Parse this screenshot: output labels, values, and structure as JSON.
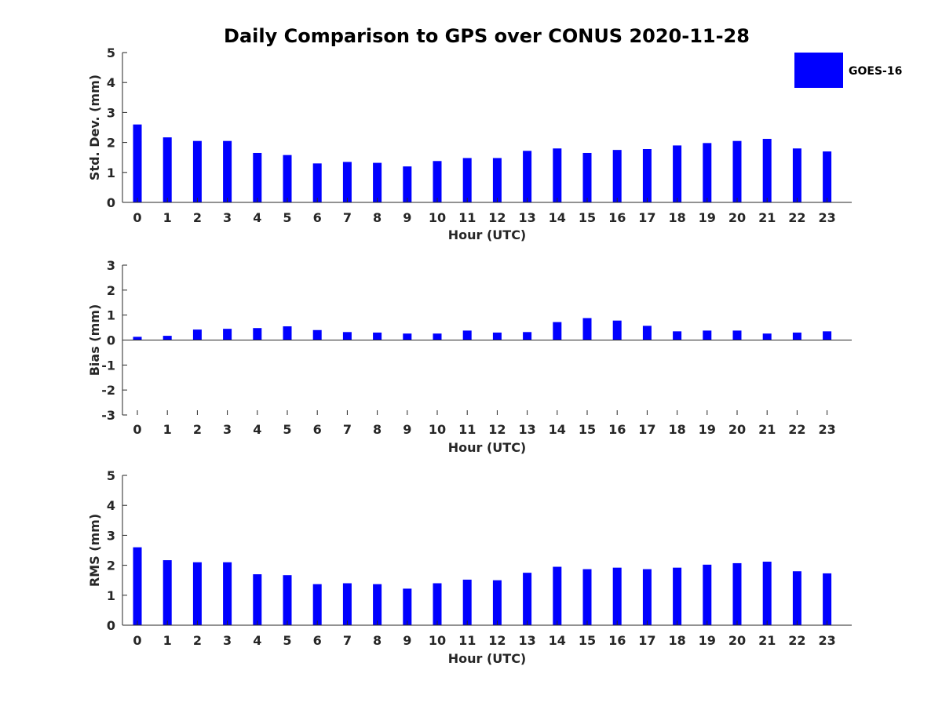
{
  "figure_title": "Daily Comparison to GPS over CONUS 2020-11-28",
  "legend": {
    "label": "GOES-16",
    "color": "#0000ff"
  },
  "chart_data": [
    {
      "type": "bar",
      "ylabel": "Std. Dev. (mm)",
      "xlabel": "Hour (UTC)",
      "ylim": [
        0,
        5
      ],
      "yticks": [
        "0",
        "1",
        "2",
        "3",
        "4",
        "5"
      ],
      "categories": [
        "0",
        "1",
        "2",
        "3",
        "4",
        "5",
        "6",
        "7",
        "8",
        "9",
        "10",
        "11",
        "12",
        "13",
        "14",
        "15",
        "16",
        "17",
        "18",
        "19",
        "20",
        "21",
        "22",
        "23"
      ],
      "series": [
        {
          "name": "GOES-16",
          "color": "#0000ff",
          "values": [
            2.6,
            2.17,
            2.05,
            2.05,
            1.65,
            1.58,
            1.3,
            1.35,
            1.32,
            1.2,
            1.38,
            1.48,
            1.48,
            1.72,
            1.8,
            1.65,
            1.75,
            1.78,
            1.9,
            1.98,
            2.05,
            2.12,
            1.8,
            1.7
          ]
        }
      ]
    },
    {
      "type": "bar",
      "ylabel": "Bias (mm)",
      "xlabel": "Hour (UTC)",
      "ylim": [
        -3,
        3
      ],
      "yticks": [
        "-3",
        "-2",
        "-1",
        "0",
        "1",
        "2",
        "3"
      ],
      "categories": [
        "0",
        "1",
        "2",
        "3",
        "4",
        "5",
        "6",
        "7",
        "8",
        "9",
        "10",
        "11",
        "12",
        "13",
        "14",
        "15",
        "16",
        "17",
        "18",
        "19",
        "20",
        "21",
        "22",
        "23"
      ],
      "series": [
        {
          "name": "GOES-16",
          "color": "#0000ff",
          "values": [
            0.13,
            0.17,
            0.42,
            0.45,
            0.48,
            0.55,
            0.4,
            0.32,
            0.3,
            0.26,
            0.26,
            0.38,
            0.3,
            0.32,
            0.72,
            0.88,
            0.78,
            0.57,
            0.35,
            0.38,
            0.38,
            0.26,
            0.3,
            0.35
          ]
        }
      ]
    },
    {
      "type": "bar",
      "ylabel": "RMS (mm)",
      "xlabel": "Hour (UTC)",
      "ylim": [
        0,
        5
      ],
      "yticks": [
        "0",
        "1",
        "2",
        "3",
        "4",
        "5"
      ],
      "categories": [
        "0",
        "1",
        "2",
        "3",
        "4",
        "5",
        "6",
        "7",
        "8",
        "9",
        "10",
        "11",
        "12",
        "13",
        "14",
        "15",
        "16",
        "17",
        "18",
        "19",
        "20",
        "21",
        "22",
        "23"
      ],
      "series": [
        {
          "name": "GOES-16",
          "color": "#0000ff",
          "values": [
            2.6,
            2.17,
            2.1,
            2.1,
            1.7,
            1.67,
            1.37,
            1.4,
            1.37,
            1.22,
            1.4,
            1.52,
            1.5,
            1.75,
            1.95,
            1.87,
            1.92,
            1.87,
            1.92,
            2.02,
            2.07,
            2.12,
            1.8,
            1.73
          ]
        }
      ]
    }
  ]
}
